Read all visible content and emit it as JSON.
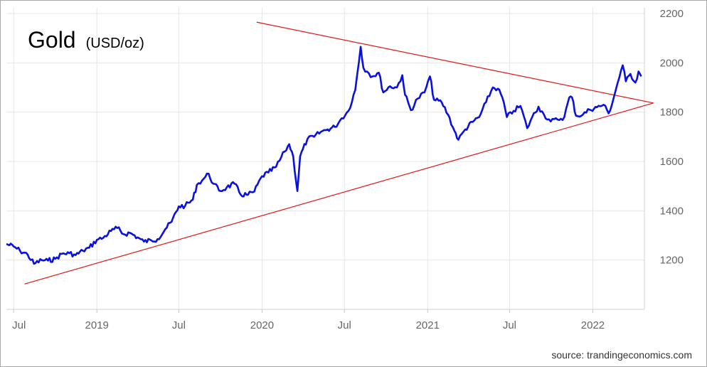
{
  "chart_data": {
    "type": "line",
    "title": "Gold",
    "unit": "(USD/oz)",
    "source": "source: trandingeconomics.com",
    "y_axis_position": "right",
    "ylim": [
      1000,
      2200
    ],
    "yticks": [
      1200,
      1400,
      1600,
      1800,
      2000,
      2200
    ],
    "xlim": [
      "2018-06-15",
      "2022-04-25"
    ],
    "xticks": [
      {
        "date": "2018-07-01",
        "label": "Jul"
      },
      {
        "date": "2019-01-01",
        "label": "2019"
      },
      {
        "date": "2019-07-01",
        "label": "Jul"
      },
      {
        "date": "2020-01-01",
        "label": "2020"
      },
      {
        "date": "2020-07-01",
        "label": "Jul"
      },
      {
        "date": "2021-01-01",
        "label": "2021"
      },
      {
        "date": "2021-07-01",
        "label": "Jul"
      },
      {
        "date": "2022-01-01",
        "label": "2022"
      }
    ],
    "grid": true,
    "colors": {
      "price": "#0a10e0",
      "trendline": "#e01818",
      "grid": "#e6e6e6"
    },
    "series": [
      {
        "name": "",
        "color": "#0a10e0",
        "x": [
          "2018-06-15",
          "2018-07-01",
          "2018-07-15",
          "2018-08-01",
          "2018-08-15",
          "2018-09-01",
          "2018-09-15",
          "2018-10-01",
          "2018-10-15",
          "2018-11-01",
          "2018-11-15",
          "2018-12-01",
          "2018-12-15",
          "2019-01-01",
          "2019-01-15",
          "2019-02-01",
          "2019-02-15",
          "2019-03-01",
          "2019-03-15",
          "2019-04-01",
          "2019-04-15",
          "2019-05-01",
          "2019-05-15",
          "2019-06-01",
          "2019-06-15",
          "2019-07-01",
          "2019-07-15",
          "2019-08-01",
          "2019-08-10",
          "2019-08-25",
          "2019-09-05",
          "2019-09-15",
          "2019-10-01",
          "2019-10-15",
          "2019-11-01",
          "2019-11-15",
          "2019-12-01",
          "2019-12-15",
          "2020-01-01",
          "2020-01-15",
          "2020-02-01",
          "2020-02-20",
          "2020-03-01",
          "2020-03-10",
          "2020-03-19",
          "2020-03-25",
          "2020-04-10",
          "2020-04-25",
          "2020-05-10",
          "2020-05-25",
          "2020-06-10",
          "2020-06-25",
          "2020-07-10",
          "2020-07-25",
          "2020-08-06",
          "2020-08-12",
          "2020-08-20",
          "2020-09-01",
          "2020-09-15",
          "2020-09-25",
          "2020-10-10",
          "2020-10-25",
          "2020-11-06",
          "2020-11-12",
          "2020-11-25",
          "2020-12-10",
          "2020-12-25",
          "2021-01-06",
          "2021-01-15",
          "2021-02-01",
          "2021-02-15",
          "2021-03-01",
          "2021-03-10",
          "2021-03-25",
          "2021-04-10",
          "2021-04-25",
          "2021-05-10",
          "2021-05-25",
          "2021-06-05",
          "2021-06-15",
          "2021-06-25",
          "2021-07-10",
          "2021-07-25",
          "2021-08-09",
          "2021-08-20",
          "2021-09-03",
          "2021-09-15",
          "2021-09-30",
          "2021-10-15",
          "2021-10-30",
          "2021-11-10",
          "2021-11-16",
          "2021-11-25",
          "2021-12-10",
          "2021-12-25",
          "2022-01-10",
          "2022-01-25",
          "2022-02-05",
          "2022-02-15",
          "2022-02-25",
          "2022-03-08",
          "2022-03-15",
          "2022-03-25",
          "2022-04-05",
          "2022-04-12",
          "2022-04-18"
        ],
        "values": [
          1265,
          1255,
          1238,
          1222,
          1185,
          1200,
          1198,
          1205,
          1225,
          1228,
          1220,
          1238,
          1250,
          1282,
          1290,
          1318,
          1330,
          1305,
          1310,
          1292,
          1275,
          1280,
          1285,
          1325,
          1355,
          1418,
          1420,
          1445,
          1505,
          1530,
          1550,
          1510,
          1480,
          1495,
          1510,
          1465,
          1465,
          1478,
          1540,
          1555,
          1578,
          1640,
          1670,
          1620,
          1480,
          1620,
          1690,
          1700,
          1720,
          1730,
          1740,
          1775,
          1805,
          1890,
          2065,
          1980,
          1965,
          1945,
          1960,
          1880,
          1905,
          1900,
          1950,
          1870,
          1808,
          1855,
          1880,
          1945,
          1850,
          1840,
          1790,
          1725,
          1688,
          1730,
          1760,
          1780,
          1840,
          1900,
          1895,
          1860,
          1780,
          1805,
          1825,
          1735,
          1780,
          1822,
          1790,
          1762,
          1770,
          1780,
          1860,
          1860,
          1785,
          1790,
          1810,
          1820,
          1830,
          1795,
          1850,
          1920,
          1990,
          1925,
          1955,
          1920,
          1965,
          1945
        ]
      }
    ],
    "trendlines": [
      {
        "name": "upper",
        "x": [
          "2019-12-20",
          "2022-05-15"
        ],
        "y": [
          2165,
          1837
        ]
      },
      {
        "name": "lower",
        "x": [
          "2018-07-25",
          "2022-05-15"
        ],
        "y": [
          1103,
          1837
        ]
      }
    ]
  }
}
